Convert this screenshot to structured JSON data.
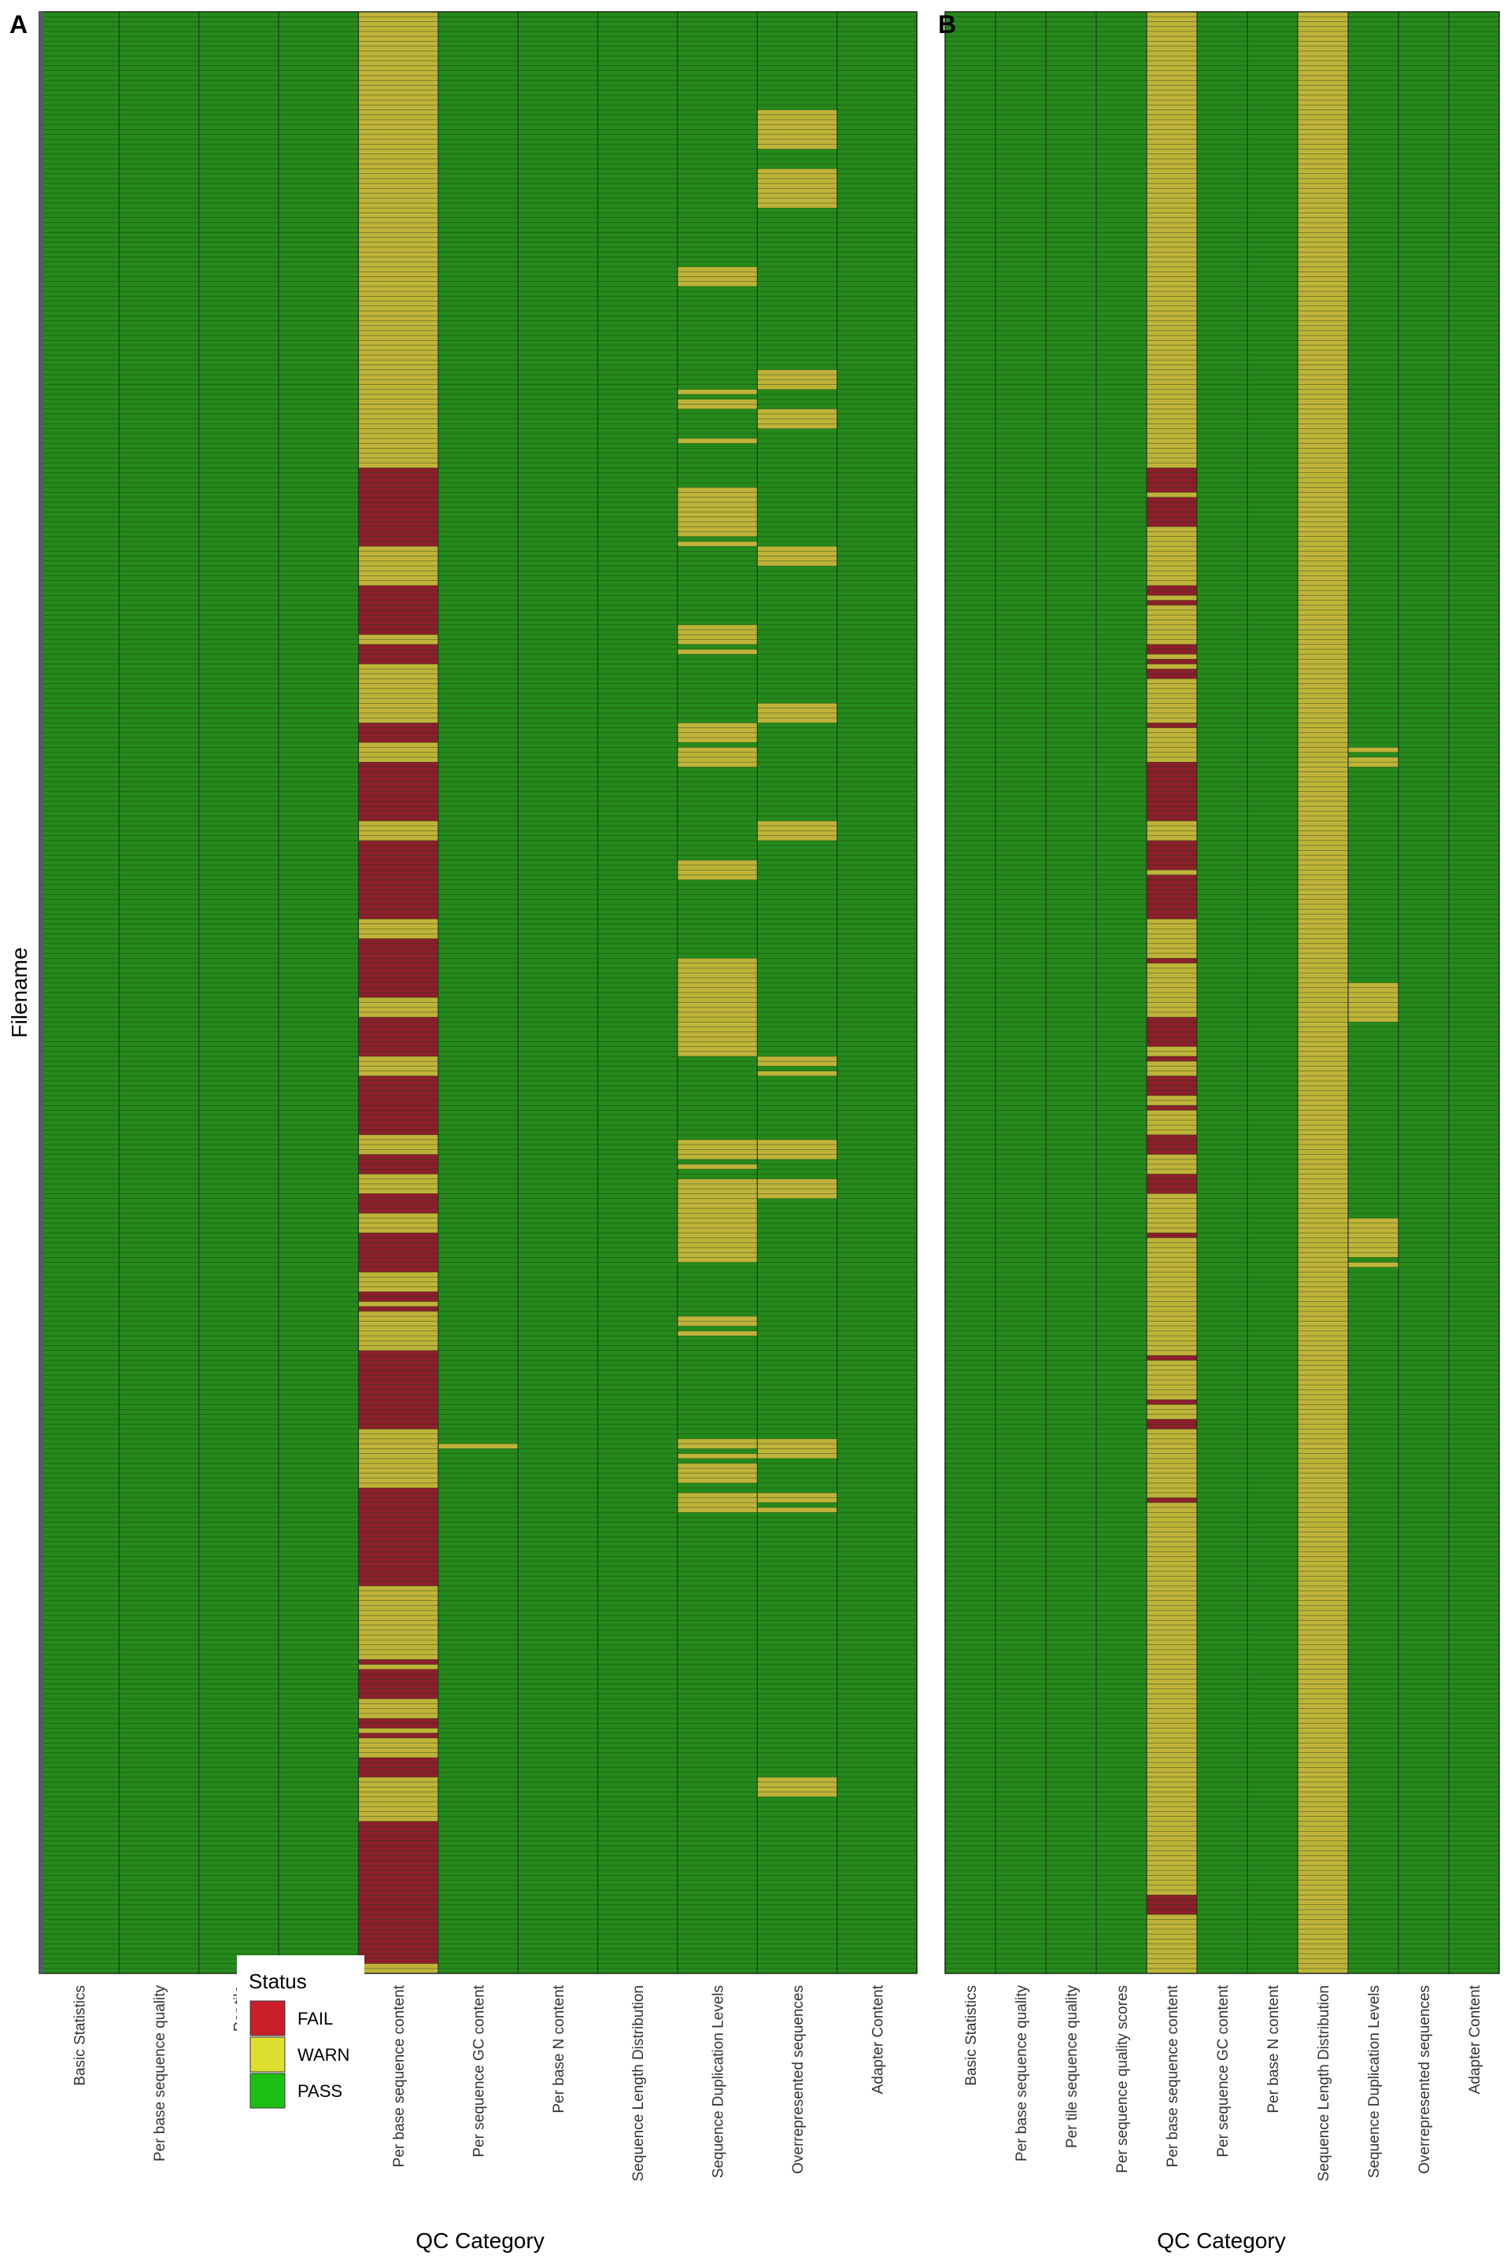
{
  "status_colors": {
    "FAIL": "#8b1f2b",
    "WARN": "#bfb339",
    "PASS": "#25891c"
  },
  "legend": {
    "title": "Status",
    "items": [
      {
        "label": "FAIL",
        "color": "#c81f2b"
      },
      {
        "label": "WARN",
        "color": "#dede30"
      },
      {
        "label": "PASS",
        "color": "#1dbf12"
      }
    ]
  },
  "chart_data": [
    {
      "type": "heatmap",
      "panel_label": "A",
      "xlabel": "QC Category",
      "ylabel": "Filename",
      "categories": [
        "Basic Statistics",
        "Per base sequence quality",
        "Per tile",
        "Per sequen",
        "Per base sequence content",
        "Per sequence GC content",
        "Per base N content",
        "Sequence Length Distribution",
        "Sequence Duplication Levels",
        "Overrepresented sequences",
        "Adapter Content"
      ],
      "n_files": 400,
      "default_status": "PASS",
      "intervals": {
        "Per base sequence content": [
          [
            "WARN",
            0,
            93
          ],
          [
            "FAIL",
            93,
            109
          ],
          [
            "WARN",
            109,
            117
          ],
          [
            "FAIL",
            117,
            127
          ],
          [
            "WARN",
            127,
            129
          ],
          [
            "FAIL",
            129,
            133
          ],
          [
            "WARN",
            133,
            145
          ],
          [
            "FAIL",
            145,
            149
          ],
          [
            "WARN",
            149,
            153
          ],
          [
            "FAIL",
            153,
            165
          ],
          [
            "WARN",
            165,
            169
          ],
          [
            "FAIL",
            169,
            185
          ],
          [
            "WARN",
            185,
            189
          ],
          [
            "FAIL",
            189,
            201
          ],
          [
            "WARN",
            201,
            205
          ],
          [
            "FAIL",
            205,
            213
          ],
          [
            "WARN",
            213,
            217
          ],
          [
            "FAIL",
            217,
            229
          ],
          [
            "WARN",
            229,
            233
          ],
          [
            "FAIL",
            233,
            237
          ],
          [
            "WARN",
            237,
            241
          ],
          [
            "FAIL",
            241,
            245
          ],
          [
            "WARN",
            245,
            249
          ],
          [
            "FAIL",
            249,
            257
          ],
          [
            "WARN",
            257,
            261
          ],
          [
            "FAIL",
            261,
            263
          ],
          [
            "WARN",
            263,
            264
          ],
          [
            "FAIL",
            264,
            265
          ],
          [
            "WARN",
            265,
            273
          ],
          [
            "FAIL",
            273,
            289
          ],
          [
            "WARN",
            289,
            301
          ],
          [
            "FAIL",
            301,
            321
          ],
          [
            "WARN",
            321,
            336
          ],
          [
            "FAIL",
            336,
            337
          ],
          [
            "WARN",
            337,
            338
          ],
          [
            "FAIL",
            338,
            344
          ],
          [
            "WARN",
            344,
            348
          ],
          [
            "FAIL",
            348,
            350
          ],
          [
            "WARN",
            350,
            351
          ],
          [
            "FAIL",
            351,
            352
          ],
          [
            "WARN",
            352,
            356
          ],
          [
            "FAIL",
            356,
            360
          ],
          [
            "WARN",
            360,
            369
          ],
          [
            "FAIL",
            369,
            398
          ],
          [
            "WARN",
            398,
            400
          ]
        ],
        "Per sequence GC content": [
          [
            "WARN",
            292,
            293
          ]
        ],
        "Sequence Duplication Levels": [
          [
            "WARN",
            52,
            56
          ],
          [
            "WARN",
            77,
            78
          ],
          [
            "WARN",
            79,
            81
          ],
          [
            "WARN",
            87,
            88
          ],
          [
            "WARN",
            97,
            107
          ],
          [
            "WARN",
            108,
            109
          ],
          [
            "WARN",
            125,
            129
          ],
          [
            "WARN",
            130,
            131
          ],
          [
            "WARN",
            145,
            149
          ],
          [
            "WARN",
            150,
            154
          ],
          [
            "WARN",
            173,
            177
          ],
          [
            "WARN",
            193,
            213
          ],
          [
            "WARN",
            230,
            234
          ],
          [
            "WARN",
            235,
            236
          ],
          [
            "WARN",
            238,
            255
          ],
          [
            "WARN",
            266,
            268
          ],
          [
            "WARN",
            269,
            270
          ],
          [
            "WARN",
            291,
            293
          ],
          [
            "WARN",
            294,
            295
          ],
          [
            "WARN",
            296,
            300
          ],
          [
            "WARN",
            302,
            306
          ]
        ],
        "Overrepresented sequences": [
          [
            "WARN",
            20,
            28
          ],
          [
            "WARN",
            32,
            40
          ],
          [
            "WARN",
            73,
            77
          ],
          [
            "WARN",
            81,
            85
          ],
          [
            "WARN",
            109,
            113
          ],
          [
            "WARN",
            141,
            145
          ],
          [
            "WARN",
            165,
            169
          ],
          [
            "WARN",
            213,
            215
          ],
          [
            "WARN",
            216,
            217
          ],
          [
            "WARN",
            230,
            234
          ],
          [
            "WARN",
            238,
            242
          ],
          [
            "WARN",
            291,
            295
          ],
          [
            "WARN",
            302,
            304
          ],
          [
            "WARN",
            305,
            306
          ],
          [
            "WARN",
            360,
            364
          ]
        ]
      }
    },
    {
      "type": "heatmap",
      "panel_label": "B",
      "xlabel": "QC Category",
      "ylabel": "",
      "categories": [
        "Basic Statistics",
        "Per base sequence quality",
        "Per tile sequence quality",
        "Per sequence quality scores",
        "Per base sequence content",
        "Per sequence GC content",
        "Per base N content",
        "Sequence Length Distribution",
        "Sequence Duplication Levels",
        "Overrepresented sequences",
        "Adapter Content"
      ],
      "n_files": 400,
      "default_status": "PASS",
      "intervals": {
        "Per base sequence content": [
          [
            "WARN",
            0,
            93
          ],
          [
            "FAIL",
            93,
            98
          ],
          [
            "WARN",
            98,
            99
          ],
          [
            "FAIL",
            99,
            105
          ],
          [
            "WARN",
            105,
            117
          ],
          [
            "FAIL",
            117,
            119
          ],
          [
            "WARN",
            119,
            120
          ],
          [
            "FAIL",
            120,
            121
          ],
          [
            "WARN",
            121,
            129
          ],
          [
            "FAIL",
            129,
            131
          ],
          [
            "WARN",
            131,
            132
          ],
          [
            "FAIL",
            132,
            133
          ],
          [
            "WARN",
            133,
            134
          ],
          [
            "FAIL",
            134,
            136
          ],
          [
            "WARN",
            136,
            145
          ],
          [
            "FAIL",
            145,
            146
          ],
          [
            "WARN",
            146,
            153
          ],
          [
            "FAIL",
            153,
            165
          ],
          [
            "WARN",
            165,
            169
          ],
          [
            "FAIL",
            169,
            175
          ],
          [
            "WARN",
            175,
            176
          ],
          [
            "FAIL",
            176,
            185
          ],
          [
            "WARN",
            185,
            193
          ],
          [
            "FAIL",
            193,
            194
          ],
          [
            "WARN",
            194,
            205
          ],
          [
            "FAIL",
            205,
            211
          ],
          [
            "WARN",
            211,
            213
          ],
          [
            "FAIL",
            213,
            214
          ],
          [
            "WARN",
            214,
            217
          ],
          [
            "FAIL",
            217,
            221
          ],
          [
            "WARN",
            221,
            223
          ],
          [
            "FAIL",
            223,
            224
          ],
          [
            "WARN",
            224,
            229
          ],
          [
            "FAIL",
            229,
            233
          ],
          [
            "WARN",
            233,
            237
          ],
          [
            "FAIL",
            237,
            241
          ],
          [
            "WARN",
            241,
            249
          ],
          [
            "FAIL",
            249,
            250
          ],
          [
            "WARN",
            250,
            274
          ],
          [
            "FAIL",
            274,
            275
          ],
          [
            "WARN",
            275,
            283
          ],
          [
            "FAIL",
            283,
            284
          ],
          [
            "WARN",
            284,
            287
          ],
          [
            "FAIL",
            287,
            289
          ],
          [
            "WARN",
            289,
            303
          ],
          [
            "FAIL",
            303,
            304
          ],
          [
            "WARN",
            304,
            384
          ],
          [
            "FAIL",
            384,
            388
          ],
          [
            "WARN",
            388,
            400
          ]
        ],
        "Sequence Length Distribution": [
          [
            "WARN",
            0,
            400
          ]
        ],
        "Sequence Duplication Levels": [
          [
            "WARN",
            150,
            151
          ],
          [
            "WARN",
            152,
            154
          ],
          [
            "WARN",
            198,
            206
          ],
          [
            "WARN",
            246,
            254
          ],
          [
            "WARN",
            255,
            256
          ]
        ]
      }
    }
  ]
}
